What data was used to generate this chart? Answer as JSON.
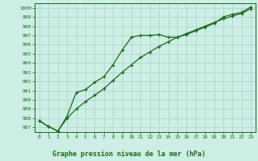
{
  "line1": [
    987.7,
    987.1,
    986.6,
    988.2,
    990.8,
    991.1,
    991.9,
    992.5,
    993.8,
    995.4,
    996.8,
    997.0,
    997.0,
    997.1,
    996.8,
    996.8,
    997.1,
    997.5,
    997.9,
    998.3,
    999.0,
    999.3,
    999.5,
    1000.1
  ],
  "line2": [
    987.7,
    987.1,
    986.6,
    988.0,
    989.0,
    989.8,
    990.5,
    991.2,
    992.1,
    993.0,
    993.8,
    994.6,
    995.2,
    995.8,
    996.3,
    996.8,
    997.2,
    997.6,
    998.0,
    998.4,
    998.8,
    999.1,
    999.4,
    999.9
  ],
  "x": [
    0,
    1,
    2,
    3,
    4,
    5,
    6,
    7,
    8,
    9,
    10,
    11,
    12,
    13,
    14,
    15,
    16,
    17,
    18,
    19,
    20,
    21,
    22,
    23
  ],
  "ylim": [
    986.5,
    1000.5
  ],
  "yticks": [
    987,
    988,
    989,
    990,
    991,
    992,
    993,
    994,
    995,
    996,
    997,
    998,
    999,
    1000
  ],
  "line_color": "#1a6b1a",
  "bg_color": "#cceee4",
  "grid_color": "#aad4c8",
  "xlabel": "Graphe pression niveau de la mer (hPa)"
}
